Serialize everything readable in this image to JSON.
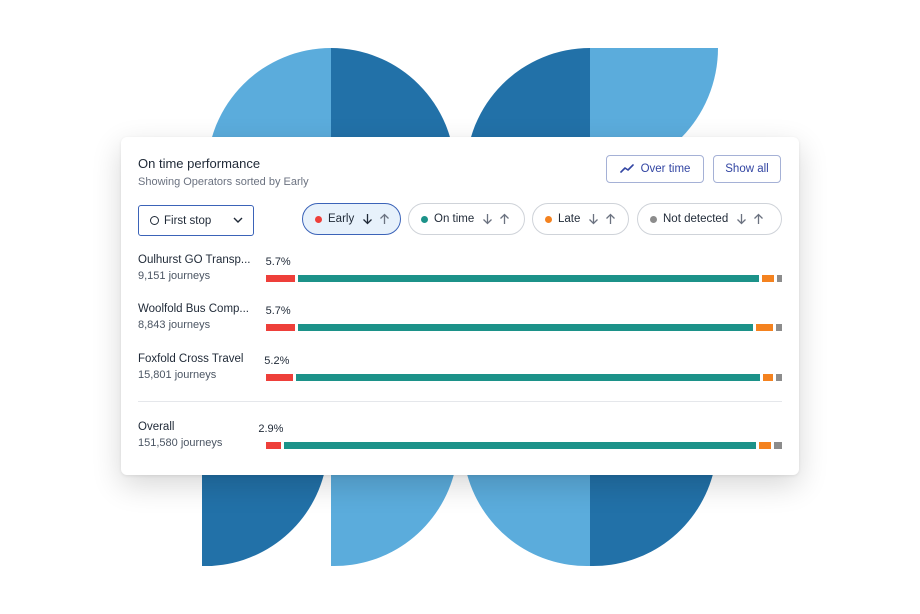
{
  "colors": {
    "early": "#ee3f3a",
    "on_time": "#1c9289",
    "late": "#f4821f",
    "not_detected": "#8c8c8c",
    "accent": "#3346a3",
    "bg_dark": "#2271a8",
    "bg_light": "#5bacdc"
  },
  "panel": {
    "title": "On time performance",
    "subtitle": "Showing Operators sorted by Early",
    "over_time_label": "Over time",
    "show_all_label": "Show all",
    "stop_select_value": "First stop"
  },
  "filters": [
    {
      "label": "Early",
      "dot": "#ee3f3a",
      "active": true
    },
    {
      "label": "On time",
      "dot": "#1c9289",
      "active": false
    },
    {
      "label": "Late",
      "dot": "#f4821f",
      "active": false
    },
    {
      "label": "Not detected",
      "dot": "#8c8c8c",
      "active": false
    }
  ],
  "operators": [
    {
      "name": "Oulhurst GO Transp...",
      "journeys": "9,151 journeys",
      "early_pct": "5.7%",
      "early": 5.7,
      "on_time": 89.5,
      "late": 2.4,
      "not_detected": 1.0
    },
    {
      "name": "Woolfold Bus Comp...",
      "journeys": "8,843 journeys",
      "early_pct": "5.7%",
      "early": 5.7,
      "on_time": 88.5,
      "late": 3.3,
      "not_detected": 1.2
    },
    {
      "name": "Foxfold Cross Travel",
      "journeys": "15,801 journeys",
      "early_pct": "5.2%",
      "early": 5.2,
      "on_time": 90.8,
      "late": 2.0,
      "not_detected": 1.2
    }
  ],
  "overall": {
    "name": "Overall",
    "journeys": "151,580 journeys",
    "early_pct": "2.9%",
    "early": 2.9,
    "on_time": 92.6,
    "late": 2.4,
    "not_detected": 1.6
  }
}
